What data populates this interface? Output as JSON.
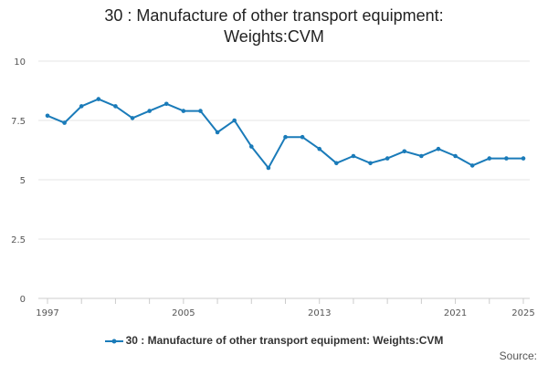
{
  "chart_data": {
    "type": "line",
    "title": "30 : Manufacture of other transport equipment: Weights:CVM",
    "xlabel": "",
    "ylabel": "",
    "ylim": [
      0,
      10
    ],
    "yticks": [
      "0",
      "2.5",
      "5",
      "7.5",
      "10"
    ],
    "xtick_labels": [
      "1997",
      "2005",
      "2013",
      "2021",
      "2025"
    ],
    "x": [
      1997,
      1998,
      1999,
      2000,
      2001,
      2002,
      2003,
      2004,
      2005,
      2006,
      2007,
      2008,
      2009,
      2010,
      2011,
      2012,
      2013,
      2014,
      2015,
      2016,
      2017,
      2018,
      2019,
      2020,
      2021,
      2022,
      2023,
      2024,
      2025
    ],
    "series": [
      {
        "name": "30 : Manufacture of other transport equipment: Weights:CVM",
        "color": "#1a7bb9",
        "values": [
          7.7,
          7.4,
          8.1,
          8.4,
          8.1,
          7.6,
          7.9,
          8.2,
          7.9,
          7.9,
          7.0,
          7.5,
          6.4,
          5.5,
          6.8,
          6.8,
          6.3,
          5.7,
          6.0,
          5.7,
          5.9,
          6.2,
          6.0,
          6.3,
          6.0,
          5.6,
          5.9,
          5.9,
          5.9
        ]
      }
    ],
    "grid": true,
    "legend": "bottom-center"
  },
  "source_label": "Source:"
}
